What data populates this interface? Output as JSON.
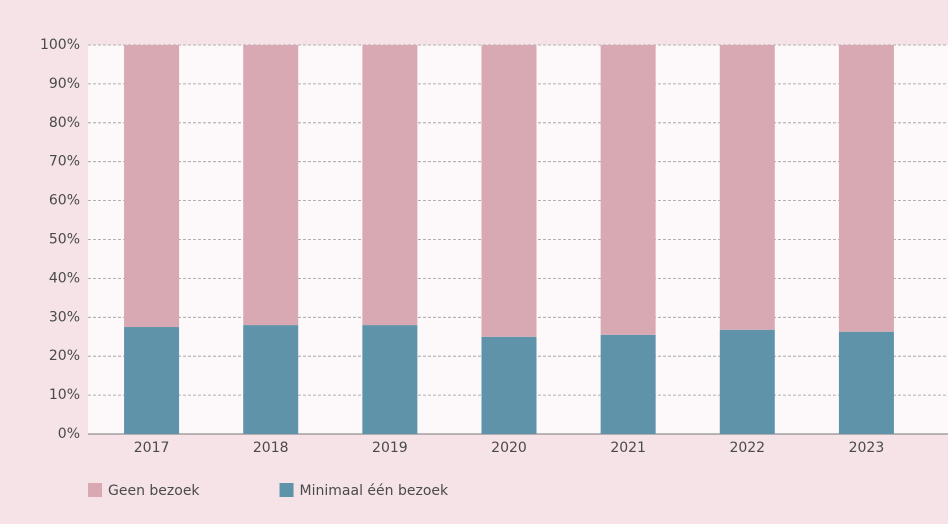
{
  "chart_data": {
    "type": "stacked_bar",
    "categories": [
      "2017",
      "2018",
      "2019",
      "2020",
      "2021",
      "2022",
      "2023"
    ],
    "series": [
      {
        "name": "Geen bezoek",
        "color": "#d9a9b3",
        "values": [
          72.5,
          72,
          72,
          75,
          74.5,
          73.2,
          73.7
        ]
      },
      {
        "name": "Minimaal één bezoek",
        "color": "#5f93aa",
        "values": [
          27.5,
          28,
          28,
          25,
          25.5,
          26.8,
          26.3
        ]
      }
    ],
    "ylim": [
      0,
      100
    ],
    "yticks": [
      {
        "value": 0,
        "label": "0%"
      },
      {
        "value": 10,
        "label": "10%"
      },
      {
        "value": 20,
        "label": "20%"
      },
      {
        "value": 30,
        "label": "30%"
      },
      {
        "value": 40,
        "label": "40%"
      },
      {
        "value": 50,
        "label": "50%"
      },
      {
        "value": 60,
        "label": "60%"
      },
      {
        "value": 70,
        "label": "70%"
      },
      {
        "value": 80,
        "label": "80%"
      },
      {
        "value": 90,
        "label": "90%"
      },
      {
        "value": 100,
        "label": "100%"
      }
    ],
    "grid": true,
    "legend": "bottom"
  }
}
